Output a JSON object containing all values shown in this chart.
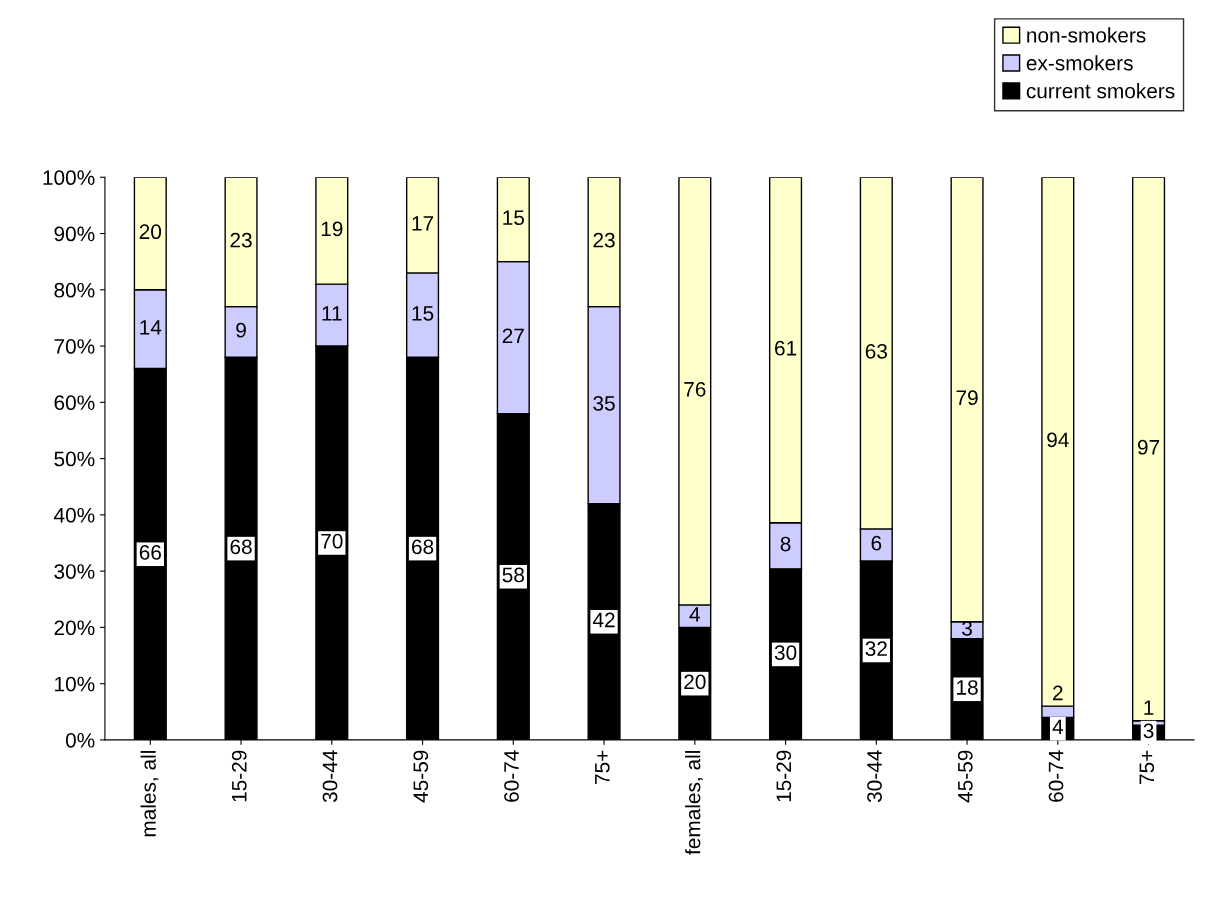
{
  "chart_data": {
    "type": "bar",
    "stacked": true,
    "categories": [
      "males, all",
      "15-29",
      "30-44",
      "45-59",
      "60-74",
      "75+",
      "females, all",
      "15-29",
      "30-44",
      "45-59",
      "60-74",
      "75+"
    ],
    "series": [
      {
        "name": "current smokers",
        "color": "#000000",
        "values": [
          66,
          68,
          70,
          68,
          58,
          42,
          20,
          30.4,
          31.8,
          18,
          4,
          2.6
        ],
        "value_labels": [
          "66",
          "68",
          "70",
          "68",
          "58",
          "42",
          "20",
          "30",
          "32",
          "18",
          "4",
          "3"
        ]
      },
      {
        "name": "ex-smokers",
        "color": "#ccccff",
        "values": [
          14,
          9,
          11,
          15,
          27,
          35,
          4,
          8.2,
          5.7,
          3,
          2,
          0.8
        ],
        "value_labels": [
          "14",
          "9",
          "11",
          "15",
          "27",
          "35",
          "4",
          "8",
          "6",
          "3",
          "2",
          "1"
        ]
      },
      {
        "name": "non-smokers",
        "color": "#ffffcc",
        "values": [
          20,
          23,
          19,
          17,
          15,
          23,
          76,
          61.4,
          62.5,
          79,
          94,
          96.6
        ],
        "value_labels": [
          "20",
          "23",
          "19",
          "17",
          "15",
          "23",
          "76",
          "61",
          "63",
          "79",
          "94",
          "97"
        ]
      }
    ],
    "ylim": [
      0,
      100
    ],
    "yticks": [
      {
        "value": 0,
        "label": "0%"
      },
      {
        "value": 10,
        "label": "10%"
      },
      {
        "value": 20,
        "label": "20%"
      },
      {
        "value": 30,
        "label": "30%"
      },
      {
        "value": 40,
        "label": "40%"
      },
      {
        "value": 50,
        "label": "50%"
      },
      {
        "value": 60,
        "label": "60%"
      },
      {
        "value": 70,
        "label": "70%"
      },
      {
        "value": 80,
        "label": "80%"
      },
      {
        "value": 90,
        "label": "90%"
      },
      {
        "value": 100,
        "label": "100%"
      }
    ],
    "legend": "top right",
    "grid": false
  }
}
